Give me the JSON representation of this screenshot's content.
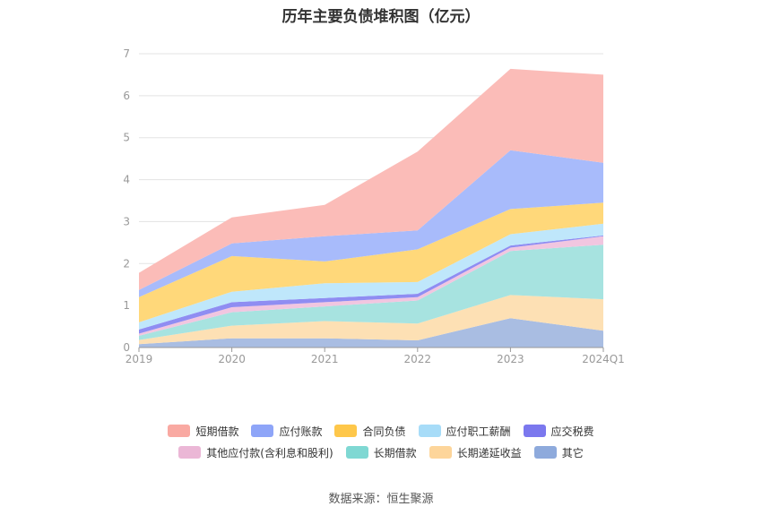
{
  "source": "数据来源：恒生聚源",
  "chart_data": {
    "type": "area",
    "title": "历年主要负债堆积图（亿元）",
    "categories": [
      "2019",
      "2020",
      "2021",
      "2022",
      "2023",
      "2024Q1"
    ],
    "y_ticks": [
      "0",
      "1",
      "2",
      "3",
      "4",
      "5",
      "6",
      "7"
    ],
    "ylim": [
      0,
      7
    ],
    "stacked": true,
    "grid": true,
    "legend_position": "bottom",
    "series": [
      {
        "name": "其它",
        "color": "#a9bde2",
        "legend_color": "#8eaadc",
        "values": [
          0.08,
          0.22,
          0.22,
          0.17,
          0.7,
          0.4
        ]
      },
      {
        "name": "长期递延收益",
        "color": "#fde0b4",
        "legend_color": "#fdd59a",
        "values": [
          0.1,
          0.3,
          0.41,
          0.4,
          0.55,
          0.75
        ]
      },
      {
        "name": "长期借款",
        "color": "#a7e3e0",
        "legend_color": "#7fd8d3",
        "values": [
          0.1,
          0.32,
          0.35,
          0.55,
          1.05,
          1.3
        ]
      },
      {
        "name": "其他应付款(含利息和股利)",
        "color": "#f1c6e0",
        "legend_color": "#ebb7d6",
        "values": [
          0.05,
          0.12,
          0.1,
          0.08,
          0.08,
          0.2
        ]
      },
      {
        "name": "应交税费",
        "color": "#8f8df2",
        "legend_color": "#7b78ee",
        "values": [
          0.1,
          0.12,
          0.1,
          0.08,
          0.05,
          0.02
        ]
      },
      {
        "name": "应付职工薪酬",
        "color": "#bfe7fb",
        "legend_color": "#a7dcf8",
        "values": [
          0.17,
          0.25,
          0.35,
          0.28,
          0.27,
          0.28
        ]
      },
      {
        "name": "合同负债",
        "color": "#ffd87a",
        "legend_color": "#fec74a",
        "values": [
          0.6,
          0.85,
          0.52,
          0.78,
          0.6,
          0.5
        ]
      },
      {
        "name": "应付账款",
        "color": "#a8bbfb",
        "legend_color": "#8ea5f8",
        "values": [
          0.17,
          0.3,
          0.6,
          0.45,
          1.4,
          0.95
        ]
      },
      {
        "name": "短期借款",
        "color": "#fbbcb8",
        "legend_color": "#f9a9a2",
        "values": [
          0.41,
          0.62,
          0.75,
          1.88,
          1.94,
          2.1
        ]
      }
    ],
    "legend_order": [
      "短期借款",
      "应付账款",
      "合同负债",
      "应付职工薪酬",
      "应交税费",
      "其他应付款(含利息和股利)",
      "长期借款",
      "长期递延收益",
      "其它"
    ]
  }
}
